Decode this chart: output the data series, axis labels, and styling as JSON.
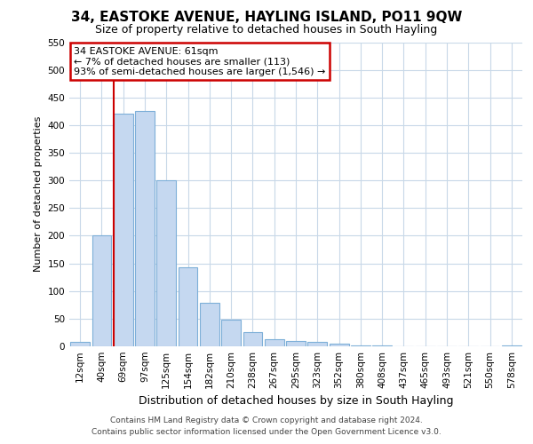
{
  "title": "34, EASTOKE AVENUE, HAYLING ISLAND, PO11 9QW",
  "subtitle": "Size of property relative to detached houses in South Hayling",
  "xlabel": "Distribution of detached houses by size in South Hayling",
  "ylabel": "Number of detached properties",
  "bar_color": "#c5d8f0",
  "bar_edge_color": "#7dafd8",
  "annotation_box_color": "#ffffff",
  "annotation_border_color": "#cc0000",
  "vline_color": "#cc0000",
  "annotation_title": "34 EASTOKE AVENUE: 61sqm",
  "annotation_line1": "← 7% of detached houses are smaller (113)",
  "annotation_line2": "93% of semi-detached houses are larger (1,546) →",
  "footnote1": "Contains HM Land Registry data © Crown copyright and database right 2024.",
  "footnote2": "Contains public sector information licensed under the Open Government Licence v3.0.",
  "categories": [
    "12sqm",
    "40sqm",
    "69sqm",
    "97sqm",
    "125sqm",
    "154sqm",
    "182sqm",
    "210sqm",
    "238sqm",
    "267sqm",
    "295sqm",
    "323sqm",
    "352sqm",
    "380sqm",
    "408sqm",
    "437sqm",
    "465sqm",
    "493sqm",
    "521sqm",
    "550sqm",
    "578sqm"
  ],
  "values": [
    8,
    200,
    420,
    425,
    300,
    143,
    78,
    48,
    25,
    13,
    10,
    8,
    5,
    2,
    1,
    0,
    0,
    0,
    0,
    0,
    2
  ],
  "ylim": [
    0,
    550
  ],
  "yticks": [
    0,
    50,
    100,
    150,
    200,
    250,
    300,
    350,
    400,
    450,
    500,
    550
  ],
  "vline_bin_index": 2,
  "background_color": "#ffffff",
  "grid_color": "#c8d8e8",
  "title_fontsize": 11,
  "subtitle_fontsize": 9,
  "ylabel_fontsize": 8,
  "xlabel_fontsize": 9,
  "tick_fontsize": 7.5,
  "annotation_fontsize": 8,
  "footnote_fontsize": 6.5
}
